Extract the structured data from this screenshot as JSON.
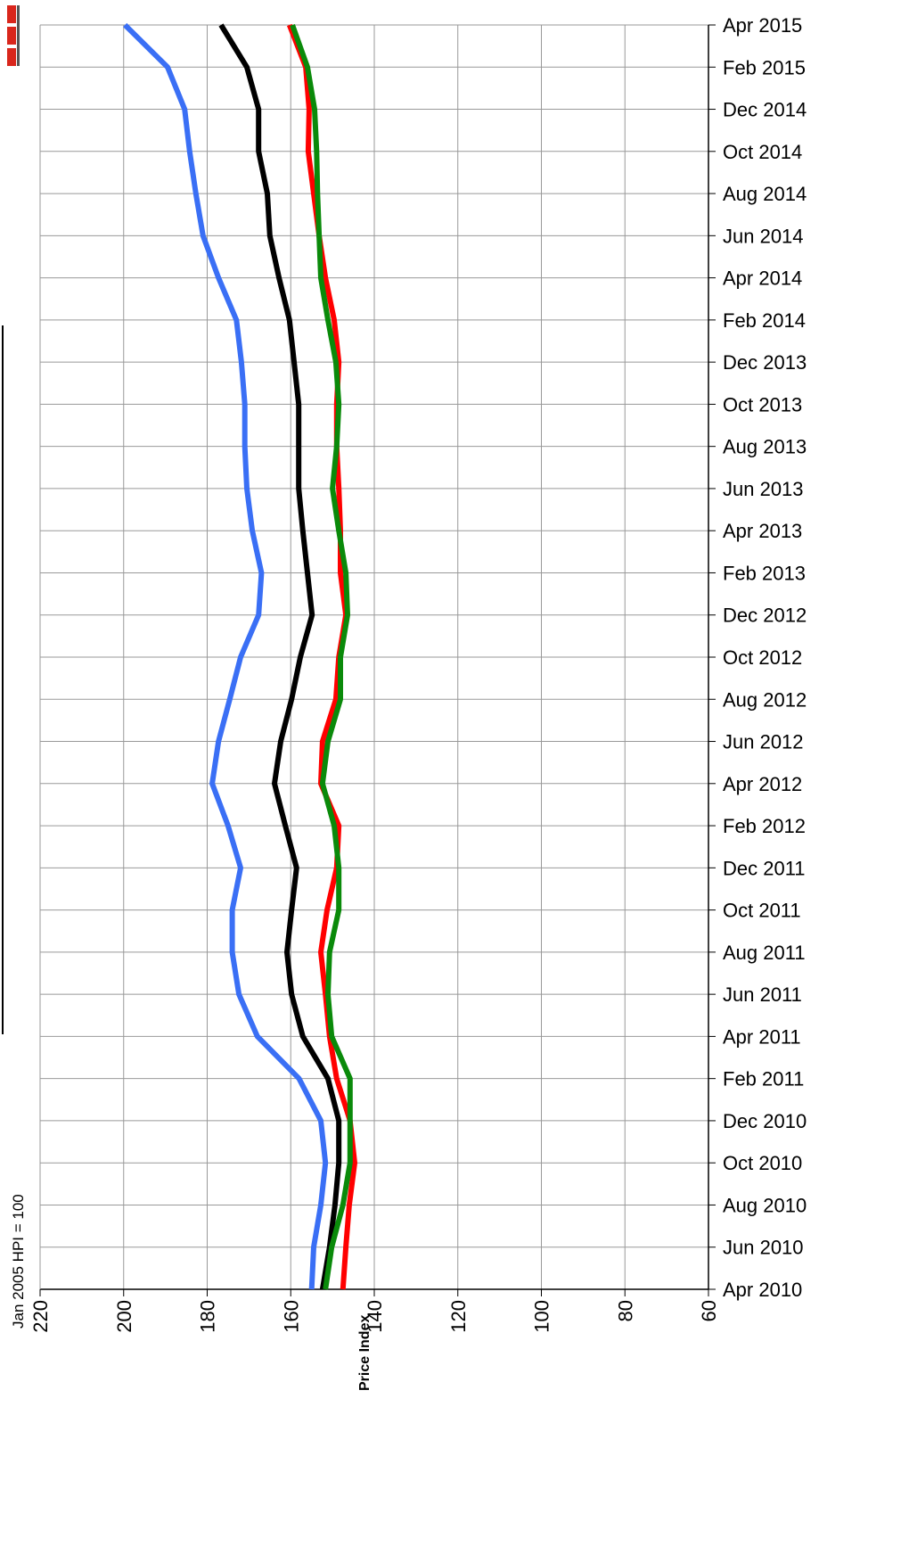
{
  "chart_data": {
    "type": "line",
    "annotation": "Jan 2005 HPI = 100",
    "ylabel": "Price Index",
    "orientation": "rotated",
    "y_axis_reversed": true,
    "grid": true,
    "ylim": [
      60,
      220
    ],
    "yticks": [
      220,
      200,
      180,
      160,
      140,
      120,
      100,
      80,
      60
    ],
    "x": [
      "2010-04",
      "2010-06",
      "2010-08",
      "2010-10",
      "2010-12",
      "2011-02",
      "2011-04",
      "2011-06",
      "2011-08",
      "2011-10",
      "2011-12",
      "2012-02",
      "2012-04",
      "2012-06",
      "2012-08",
      "2012-10",
      "2012-12",
      "2013-02",
      "2013-04",
      "2013-06",
      "2013-08",
      "2013-10",
      "2013-12",
      "2014-02",
      "2014-04",
      "2014-06",
      "2014-08",
      "2014-10",
      "2014-12",
      "2015-02",
      "2015-04"
    ],
    "xticks": [
      {
        "value": "2010-04",
        "label": "Apr 2010"
      },
      {
        "value": "2010-06",
        "label": "Jun 2010"
      },
      {
        "value": "2010-08",
        "label": "Aug 2010"
      },
      {
        "value": "2010-10",
        "label": "Oct 2010"
      },
      {
        "value": "2010-12",
        "label": "Dec 2010"
      },
      {
        "value": "2011-02",
        "label": "Feb 2011"
      },
      {
        "value": "2011-04",
        "label": "Apr 2011"
      },
      {
        "value": "2011-06",
        "label": "Jun 2011"
      },
      {
        "value": "2011-08",
        "label": "Aug 2011"
      },
      {
        "value": "2011-10",
        "label": "Oct 2011"
      },
      {
        "value": "2011-12",
        "label": "Dec 2011"
      },
      {
        "value": "2012-02",
        "label": "Feb 2012"
      },
      {
        "value": "2012-04",
        "label": "Apr 2012"
      },
      {
        "value": "2012-06",
        "label": "Jun 2012"
      },
      {
        "value": "2012-08",
        "label": "Aug 2012"
      },
      {
        "value": "2012-10",
        "label": "Oct 2012"
      },
      {
        "value": "2012-12",
        "label": "Dec 2012"
      },
      {
        "value": "2013-02",
        "label": "Feb 2013"
      },
      {
        "value": "2013-04",
        "label": "Apr 2013"
      },
      {
        "value": "2013-06",
        "label": "Jun 2013"
      },
      {
        "value": "2013-08",
        "label": "Aug 2013"
      },
      {
        "value": "2013-10",
        "label": "Oct 2013"
      },
      {
        "value": "2013-12",
        "label": "Dec 2013"
      },
      {
        "value": "2014-02",
        "label": "Feb 2014"
      },
      {
        "value": "2014-04",
        "label": "Apr 2014"
      },
      {
        "value": "2014-06",
        "label": "Jun 2014"
      },
      {
        "value": "2014-08",
        "label": "Aug 2014"
      },
      {
        "value": "2014-10",
        "label": "Oct 2014"
      },
      {
        "value": "2014-12",
        "label": "Dec 2014"
      },
      {
        "value": "2015-02",
        "label": "Feb 2015"
      },
      {
        "value": "2015-04",
        "label": "Apr 2015"
      }
    ],
    "series": [
      {
        "color": "#3a6ff5",
        "values": [
          155,
          154.5,
          152.8,
          151.7,
          152.8,
          158,
          168,
          172.4,
          174,
          174,
          172,
          175,
          178.8,
          177.3,
          174.6,
          172,
          167.7,
          167,
          169.2,
          170.5,
          171,
          171,
          171.8,
          173,
          177.3,
          181,
          182.7,
          184.2,
          185.4,
          189.5,
          199.7
        ]
      },
      {
        "color": "#000000",
        "values": [
          152.4,
          150.7,
          149.4,
          148.5,
          148.5,
          151.1,
          157.1,
          159.8,
          160.9,
          159.8,
          158.6,
          161.3,
          163.9,
          162.4,
          159.8,
          157.7,
          154.9,
          156,
          157.1,
          158.1,
          158.1,
          158.1,
          159.2,
          160.3,
          162.8,
          165,
          165.6,
          167.7,
          167.7,
          170.5,
          176.7
        ]
      },
      {
        "color": "#ff0000",
        "values": [
          147.5,
          146.8,
          146,
          144.7,
          145.8,
          149,
          150.7,
          151.7,
          152.8,
          151.3,
          149,
          148.5,
          152.8,
          152.4,
          149.2,
          148.5,
          146.8,
          148.1,
          148.1,
          148.5,
          149,
          149,
          148.5,
          149.6,
          151.7,
          153.2,
          154.5,
          155.8,
          155.6,
          156.4,
          160.3
        ]
      },
      {
        "color": "#0a8a0a",
        "values": [
          151.7,
          150.2,
          147.5,
          145.8,
          145.8,
          145.8,
          150.2,
          151.1,
          150.7,
          148.5,
          148.5,
          149.6,
          152.4,
          151.1,
          148.1,
          148.1,
          146.4,
          146.8,
          148.5,
          150,
          149,
          148.5,
          149.2,
          151.1,
          152.8,
          153.2,
          153.6,
          153.8,
          154.3,
          156,
          159.6
        ]
      }
    ]
  }
}
